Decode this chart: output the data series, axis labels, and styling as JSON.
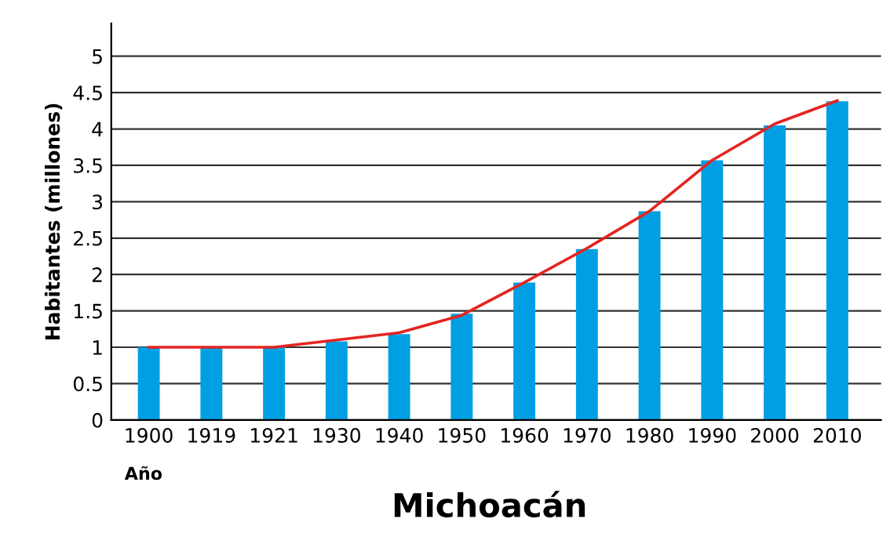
{
  "chart_data": {
    "type": "bar",
    "title": "Michoacán",
    "ylabel": "Habitantes (millones)",
    "annotations": [
      "Año"
    ],
    "categories": [
      "1900",
      "1919",
      "1921",
      "1930",
      "1940",
      "1950",
      "1960",
      "1970",
      "1980",
      "1990",
      "2000",
      "2010"
    ],
    "series": [
      {
        "color": "#009fe3",
        "values": [
          1.0,
          1.0,
          1.0,
          1.08,
          1.18,
          1.46,
          1.89,
          2.35,
          2.87,
          3.57,
          4.05,
          4.38
        ]
      },
      {
        "type": "line",
        "color": "#e52421",
        "values": [
          1.0,
          1.0,
          1.0,
          1.1,
          1.2,
          1.44,
          1.89,
          2.36,
          2.87,
          3.57,
          4.07,
          4.39
        ]
      }
    ],
    "ylim": [
      0,
      5.45
    ],
    "yticks": [
      0,
      0.5,
      1,
      1.5,
      2,
      2.5,
      3,
      3.5,
      4,
      4.5,
      5
    ],
    "grid": "y",
    "legend": false
  }
}
